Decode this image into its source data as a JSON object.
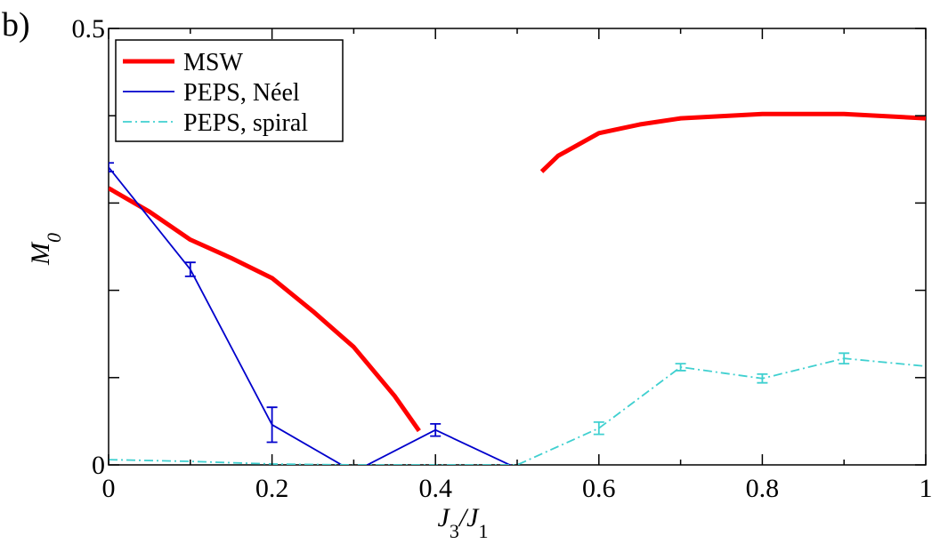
{
  "chart_data": {
    "type": "line",
    "annotation": "b)",
    "xlabel": [
      "J",
      "3",
      "/J",
      "1"
    ],
    "ylabel": [
      "M",
      "0"
    ],
    "xlim": [
      0,
      1
    ],
    "ylim": [
      0,
      0.5
    ],
    "xticks": [
      0,
      0.2,
      0.4,
      0.6,
      0.8,
      1
    ],
    "xminorticks": [
      0.1,
      0.3,
      0.5,
      0.7,
      0.9
    ],
    "yticks": [
      0,
      0.5
    ],
    "yminorticks": [
      0.1,
      0.2,
      0.3,
      0.4
    ],
    "legend": "upper left",
    "series": [
      {
        "name": "MSW",
        "color": "#ff0000",
        "width": 5,
        "dash": "solid",
        "x": [
          0,
          0.05,
          0.1,
          0.15,
          0.2,
          0.25,
          0.3,
          0.35,
          0.38,
          0.45,
          0.53,
          0.55,
          0.6,
          0.65,
          0.7,
          0.8,
          0.9,
          1
        ],
        "values": [
          0.317,
          0.29,
          0.258,
          0.237,
          0.214,
          0.176,
          0.135,
          0.079,
          0.039,
          null,
          0.336,
          0.354,
          0.38,
          0.39,
          0.397,
          0.402,
          0.402,
          0.397
        ]
      },
      {
        "name": "PEPS, Néel",
        "color": "#0000cc",
        "width": 1.8,
        "dash": "solid",
        "x": [
          0,
          0.1,
          0.2,
          0.3,
          0.4,
          0.5
        ],
        "values": [
          0.341,
          0.224,
          0.046,
          -0.008,
          0.04,
          -0.004
        ],
        "errors": [
          0.005,
          0.008,
          0.02,
          null,
          0.007,
          null
        ]
      },
      {
        "name": "PEPS, spiral",
        "color": "#40d0d0",
        "width": 1.8,
        "dash": "dashdot",
        "x": [
          0,
          0.1,
          0.2,
          0.3,
          0.4,
          0.5,
          0.6,
          0.7,
          0.8,
          0.9,
          1
        ],
        "values": [
          0.006,
          0.004,
          0.001,
          0,
          0,
          0,
          0.042,
          0.112,
          0.099,
          0.122,
          0.113
        ],
        "errors": [
          null,
          null,
          null,
          null,
          null,
          null,
          0.007,
          0.004,
          0.005,
          0.006,
          null
        ]
      }
    ]
  }
}
